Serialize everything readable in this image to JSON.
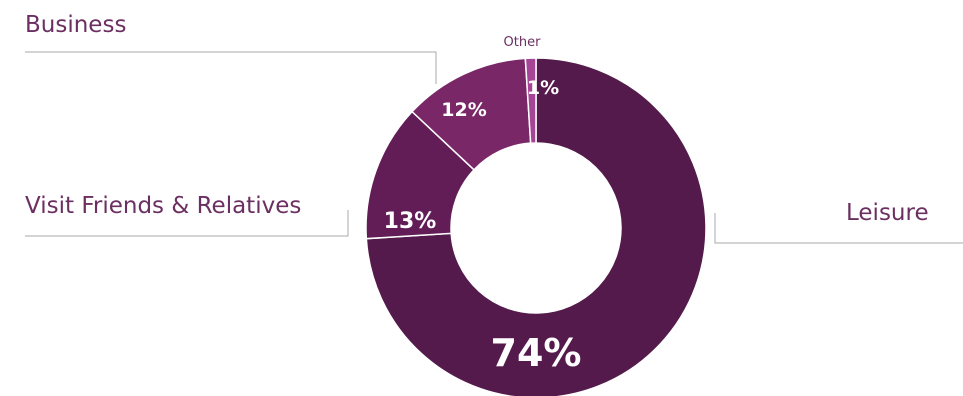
{
  "chart_data": {
    "type": "pie",
    "variant": "donut",
    "title": "",
    "categories": [
      "Leisure",
      "Visit Friends & Relatives",
      "Business",
      "Other"
    ],
    "values": [
      74,
      13,
      12,
      1
    ],
    "value_labels": [
      "74%",
      "13%",
      "12%",
      "1%"
    ],
    "unit": "%",
    "colors": {
      "Leisure": "#541a4b",
      "Visit Friends & Relatives": "#621d57",
      "Business": "#7a2768",
      "Other": "#a54596",
      "label_text": "#6b2f61",
      "leader_line": "#a8a8a8",
      "slice_border": "#ffffff"
    },
    "legend": "none"
  }
}
